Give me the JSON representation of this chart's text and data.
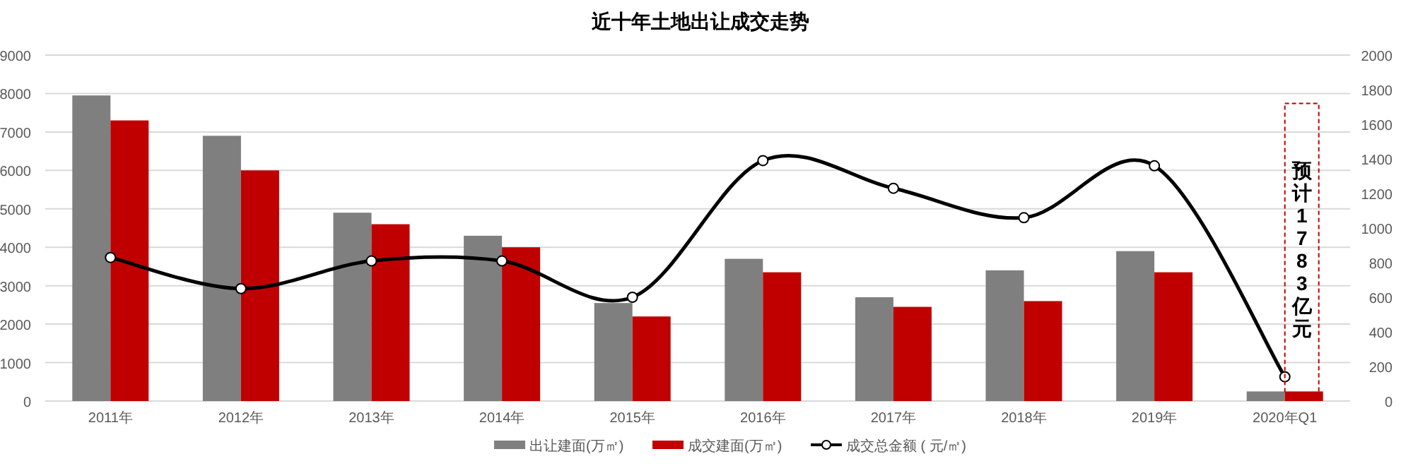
{
  "chart_data": {
    "type": "bar",
    "title": "近十年土地出让成交走势",
    "categories": [
      "2011年",
      "2012年",
      "2013年",
      "2014年",
      "2015年",
      "2016年",
      "2017年",
      "2018年",
      "2019年",
      "2020年Q1"
    ],
    "series": [
      {
        "name": "出让建面(万㎡)",
        "color": "#7f7f7f",
        "values": [
          7950,
          6900,
          4900,
          4300,
          2550,
          3700,
          2700,
          3400,
          3900,
          250
        ]
      },
      {
        "name": "成交建面(万㎡)",
        "color": "#c00000",
        "values": [
          7300,
          6000,
          4600,
          4000,
          2200,
          3350,
          2450,
          2600,
          3350,
          250
        ]
      },
      {
        "name": "成交总金额 ( 元/㎡)",
        "type": "line",
        "axis": "y2",
        "color": "#000000",
        "marker": "circle",
        "values": [
          830,
          650,
          810,
          810,
          600,
          1390,
          1230,
          1060,
          1360,
          140
        ]
      }
    ],
    "ylim": [
      0,
      9000
    ],
    "yticks": [
      0,
      1000,
      2000,
      3000,
      4000,
      5000,
      6000,
      7000,
      8000,
      9000
    ],
    "y2lim": [
      0,
      2000
    ],
    "y2ticks": [
      0,
      200,
      400,
      600,
      800,
      1000,
      1200,
      1400,
      1600,
      1800,
      2000
    ],
    "grid": "y",
    "legend": "bottom",
    "annotations": [
      "预计1783亿元"
    ]
  }
}
